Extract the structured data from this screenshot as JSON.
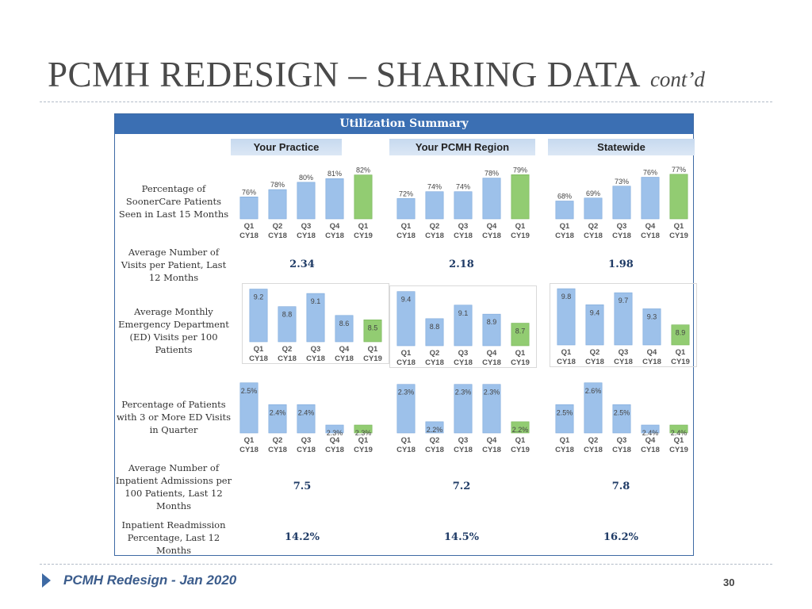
{
  "slide": {
    "title": "PCMH REDESIGN – SHARING DATA",
    "title_suffix": "cont’d",
    "footer": "PCMH Redesign - Jan 2020",
    "page_number": "30"
  },
  "table": {
    "header": "Utilization Summary",
    "columns": [
      "Your Practice",
      "Your PCMH Region",
      "Statewide"
    ],
    "rows": [
      {
        "label": "Percentage of SoonerCare Patients Seen in Last 15 Months"
      },
      {
        "label": "Average Number of Visits per Patient, Last 12 Months",
        "values": [
          "2.34",
          "2.18",
          "1.98"
        ]
      },
      {
        "label": "Average Monthly Emergency Department (ED) Visits per 100 Patients"
      },
      {
        "label": "Percentage of Patients with 3 or More ED Visits in Quarter"
      },
      {
        "label": "Average Number of Inpatient Admissions per 100 Patients, Last 12 Months",
        "values": [
          "7.5",
          "7.2",
          "7.8"
        ]
      },
      {
        "label": "Inpatient Readmission Percentage, Last 12 Months",
        "values": [
          "14.2%",
          "14.5%",
          "16.2%"
        ]
      }
    ]
  },
  "chart_data": [
    {
      "type": "bar",
      "group": "Percentage of SoonerCare Patients Seen in Last 15 Months",
      "column": "Your Practice",
      "categories": [
        "Q1 CY18",
        "Q2 CY18",
        "Q3 CY18",
        "Q4 CY18",
        "Q1 CY19"
      ],
      "values": [
        76,
        78,
        80,
        81,
        82
      ],
      "labels": [
        "76%",
        "78%",
        "80%",
        "81%",
        "82%"
      ],
      "ylim": [
        70,
        83
      ]
    },
    {
      "type": "bar",
      "group": "Percentage of SoonerCare Patients Seen in Last 15 Months",
      "column": "Your PCMH Region",
      "categories": [
        "Q1 CY18",
        "Q2 CY18",
        "Q3 CY18",
        "Q4 CY18",
        "Q1 CY19"
      ],
      "values": [
        72,
        74,
        74,
        78,
        79
      ],
      "labels": [
        "72%",
        "74%",
        "74%",
        "78%",
        "79%"
      ],
      "ylim": [
        66,
        80
      ]
    },
    {
      "type": "bar",
      "group": "Percentage of SoonerCare Patients Seen in Last 15 Months",
      "column": "Statewide",
      "categories": [
        "Q1 CY18",
        "Q2 CY18",
        "Q3 CY18",
        "Q4 CY18",
        "Q1 CY19"
      ],
      "values": [
        68,
        69,
        73,
        76,
        77
      ],
      "labels": [
        "68%",
        "69%",
        "73%",
        "76%",
        "77%"
      ],
      "ylim": [
        62,
        78
      ]
    },
    {
      "type": "bar",
      "group": "Average Monthly Emergency Department (ED) Visits per 100 Patients",
      "column": "Your Practice",
      "categories": [
        "Q1 CY18",
        "Q2 CY18",
        "Q3 CY18",
        "Q4 CY18",
        "Q1 CY19"
      ],
      "values": [
        9.2,
        8.8,
        9.1,
        8.6,
        8.5
      ],
      "labels": [
        "9.2",
        "8.8",
        "9.1",
        "8.6",
        "8.5"
      ],
      "ylim": [
        8.0,
        9.3
      ]
    },
    {
      "type": "bar",
      "group": "Average Monthly Emergency Department (ED) Visits per 100 Patients",
      "column": "Your PCMH Region",
      "categories": [
        "Q1 CY18",
        "Q2 CY18",
        "Q3 CY18",
        "Q4 CY18",
        "Q1 CY19"
      ],
      "values": [
        9.4,
        8.8,
        9.1,
        8.9,
        8.7
      ],
      "labels": [
        "9.4",
        "8.8",
        "9.1",
        "8.9",
        "8.7"
      ],
      "ylim": [
        8.2,
        9.5
      ]
    },
    {
      "type": "bar",
      "group": "Average Monthly Emergency Department (ED) Visits per 100 Patients",
      "column": "Statewide",
      "categories": [
        "Q1 CY18",
        "Q2 CY18",
        "Q3 CY18",
        "Q4 CY18",
        "Q1 CY19"
      ],
      "values": [
        9.8,
        9.4,
        9.7,
        9.3,
        8.9
      ],
      "labels": [
        "9.8",
        "9.4",
        "9.7",
        "9.3",
        "8.9"
      ],
      "ylim": [
        8.4,
        9.9
      ]
    },
    {
      "type": "bar",
      "group": "Percentage of Patients with 3 or More ED Visits in Quarter",
      "column": "Your Practice",
      "categories": [
        "Q1 CY18",
        "Q2 CY18",
        "Q3 CY18",
        "Q4 CY18",
        "Q1 CY19"
      ],
      "values": [
        2.5,
        2.4,
        2.4,
        2.3,
        2.3
      ],
      "labels": [
        "2.5%",
        "2.4%",
        "2.4%",
        "2.3%",
        "2.3%"
      ],
      "ylim": [
        2.27,
        2.51
      ]
    },
    {
      "type": "bar",
      "group": "Percentage of Patients with 3 or More ED Visits in Quarter",
      "column": "Your PCMH Region",
      "categories": [
        "Q1 CY18",
        "Q2 CY18",
        "Q3 CY18",
        "Q4 CY18",
        "Q1 CY19"
      ],
      "values": [
        2.3,
        2.2,
        2.3,
        2.3,
        2.2
      ],
      "labels": [
        "2.3%",
        "2.2%",
        "2.3%",
        "2.3%",
        "2.2%"
      ],
      "ylim": [
        2.17,
        2.31
      ]
    },
    {
      "type": "bar",
      "group": "Percentage of Patients with 3 or More ED Visits in Quarter",
      "column": "Statewide",
      "categories": [
        "Q1 CY18",
        "Q2 CY18",
        "Q3 CY18",
        "Q4 CY18",
        "Q1 CY19"
      ],
      "values": [
        2.5,
        2.6,
        2.5,
        2.4,
        2.4
      ],
      "labels": [
        "2.5%",
        "2.6%",
        "2.5%",
        "2.4%",
        "2.4%"
      ],
      "ylim": [
        2.37,
        2.61
      ]
    }
  ],
  "colors": {
    "bar": "#9dc1ea",
    "bar_edge": "#7ea9da",
    "latest_bar": "#92cc72",
    "latest_edge": "#76b457",
    "header": "#3b6fb3",
    "border": "#3e6aa4"
  }
}
